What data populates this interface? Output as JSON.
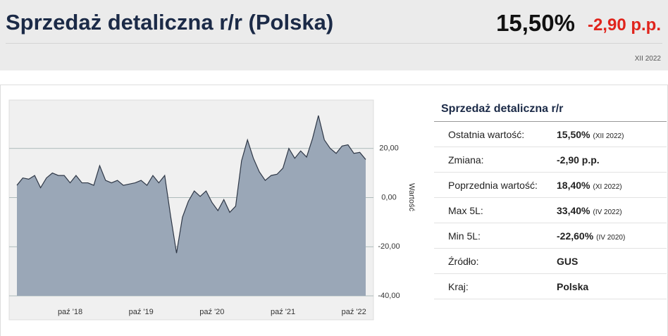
{
  "header": {
    "title": "Sprzedaż detaliczna r/r (Polska)",
    "value": "15,50%",
    "change": "-2,90 p.p.",
    "date": "XII 2022"
  },
  "chart_data": {
    "type": "area",
    "categories": [
      null,
      null,
      null,
      null,
      null,
      null,
      null,
      null,
      null,
      "paź '18",
      null,
      null,
      null,
      null,
      null,
      null,
      null,
      null,
      null,
      null,
      null,
      "paź '19",
      null,
      null,
      null,
      null,
      null,
      null,
      null,
      null,
      null,
      null,
      null,
      "paź '20",
      null,
      null,
      null,
      null,
      null,
      null,
      null,
      null,
      null,
      null,
      null,
      "paź '21",
      null,
      null,
      null,
      null,
      null,
      null,
      null,
      null,
      null,
      null,
      null,
      "paź '22",
      null,
      null
    ],
    "values": [
      5,
      8,
      7.5,
      9,
      4,
      8,
      10,
      9,
      9,
      6,
      9,
      6,
      6,
      5,
      13,
      7,
      6,
      7,
      5,
      5.5,
      6,
      7,
      5,
      9,
      6,
      9,
      -7.5,
      -22.6,
      -8,
      -1.5,
      2.7,
      0.5,
      2.7,
      -2,
      -5.3,
      -0.8,
      -6,
      -3.5,
      15,
      23.5,
      16,
      10.5,
      7,
      9,
      9.5,
      12,
      20,
      16,
      19,
      16.5,
      24,
      33.4,
      23.5,
      20,
      18,
      21,
      21.5,
      18,
      18.4,
      15.5
    ],
    "color": "#9aa7b7",
    "line_color": "#2e3746",
    "ylim": [
      -40,
      40
    ],
    "yticks": [
      {
        "value": -40,
        "label": "-40,00"
      },
      {
        "value": -20,
        "label": "-20,00"
      },
      {
        "value": 0,
        "label": "0,00"
      },
      {
        "value": 20,
        "label": "20,00"
      }
    ],
    "ylabel": "Wartość",
    "grid": true
  },
  "table": {
    "title": "Sprzedaż detaliczna r/r",
    "rows": [
      {
        "label": "Ostatnia wartość:",
        "value": "15,50%",
        "note": "(XII 2022)"
      },
      {
        "label": "Zmiana:",
        "value": "-2,90 p.p."
      },
      {
        "label": "Poprzednia wartość:",
        "value": "18,40%",
        "note": "(XI 2022)"
      },
      {
        "label": "Max 5L:",
        "value": "33,40%",
        "note": "(IV 2022)"
      },
      {
        "label": "Min 5L:",
        "value": "-22,60%",
        "note": "(IV 2020)"
      },
      {
        "label": "Źródło:",
        "value": "GUS"
      },
      {
        "label": "Kraj:",
        "value": "Polska"
      }
    ]
  }
}
